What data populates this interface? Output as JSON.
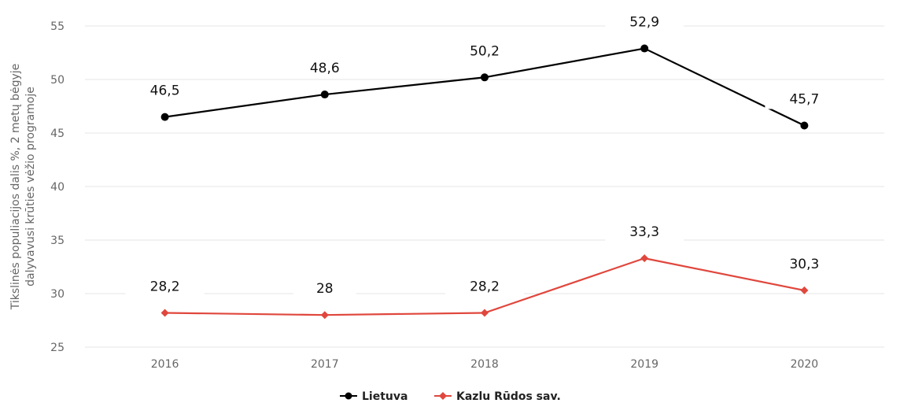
{
  "chart_data": {
    "type": "line",
    "x": [
      "2016",
      "2017",
      "2018",
      "2019",
      "2020"
    ],
    "ylabel_lines": [
      "Tikslinės populiacijos dalis %, 2 metų bėgyje",
      "dalyvavusi krūties vėžio programoje"
    ],
    "ylim": [
      25,
      55
    ],
    "yticks": [
      "25",
      "30",
      "35",
      "40",
      "45",
      "50",
      "55"
    ],
    "grid": true,
    "legend_position": "bottom-center",
    "series": [
      {
        "name": "Lietuva",
        "color": "#000000",
        "marker": "circle",
        "values": [
          46.5,
          48.6,
          50.2,
          52.9,
          45.7
        ],
        "labels": [
          "46,5",
          "48,6",
          "50,2",
          "52,9",
          "45,7"
        ]
      },
      {
        "name": "Kazlu Rūdos sav.",
        "color": "#e0473d",
        "marker": "diamond",
        "values": [
          28.2,
          28.0,
          28.2,
          33.3,
          30.3
        ],
        "labels": [
          "28,2",
          "28",
          "28,2",
          "33,3",
          "30,3"
        ]
      }
    ]
  }
}
